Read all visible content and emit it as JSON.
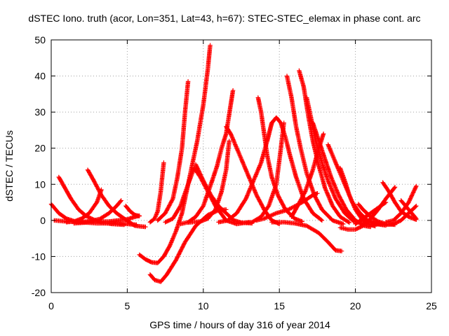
{
  "chart_data": {
    "type": "scatter",
    "title": "dSTEC Iono. truth (acor, Lon=351, Lat=43, h=67): STEC-STEC_elemax in phase cont. arc",
    "xlabel": "GPS time / hours of day 316 of year 2014",
    "ylabel": "dSTEC  / TECUs",
    "xlim": [
      0,
      25
    ],
    "ylim": [
      -20,
      50
    ],
    "x_ticks": [
      0,
      5,
      10,
      15,
      20,
      25
    ],
    "y_ticks": [
      -20,
      -10,
      0,
      10,
      20,
      30,
      40,
      50
    ],
    "grid": true,
    "marker": "+",
    "color": "#ff0000",
    "series": [
      {
        "points": [
          [
            0,
            4.5
          ],
          [
            0.5,
            2
          ],
          [
            1,
            0.5
          ],
          [
            1.5,
            -0.2
          ],
          [
            2,
            -0.5
          ],
          [
            3,
            -0.8
          ],
          [
            4,
            -0.8
          ],
          [
            5,
            -1
          ],
          [
            5.6,
            -1.2
          ]
        ]
      },
      {
        "points": [
          [
            0.2,
            0
          ],
          [
            1,
            -0.3
          ],
          [
            1.8,
            -0.5
          ],
          [
            2.6,
            -0.2
          ],
          [
            3.2,
            0.4
          ],
          [
            3.8,
            2
          ],
          [
            4.3,
            4
          ],
          [
            4.6,
            5.5
          ]
        ]
      },
      {
        "points": [
          [
            0.5,
            12
          ],
          [
            0.9,
            9
          ],
          [
            1.3,
            6
          ],
          [
            1.8,
            3
          ],
          [
            2.3,
            1.2
          ],
          [
            2.8,
            0.2
          ],
          [
            3.3,
            -0.5
          ],
          [
            4,
            -1
          ],
          [
            4.8,
            -1.2
          ]
        ]
      },
      {
        "points": [
          [
            1,
            -0.5
          ],
          [
            1.5,
            -0.3
          ],
          [
            2,
            0.5
          ],
          [
            2.5,
            2
          ],
          [
            3,
            5
          ],
          [
            3.3,
            8.5
          ]
        ]
      },
      {
        "points": [
          [
            2.4,
            14
          ],
          [
            2.8,
            11
          ],
          [
            3.3,
            7
          ],
          [
            3.8,
            4
          ],
          [
            4.3,
            2
          ],
          [
            4.8,
            0.5
          ],
          [
            5.5,
            -1.5
          ],
          [
            6.2,
            -1.8
          ]
        ]
      },
      {
        "points": [
          [
            1.5,
            -0.8
          ],
          [
            2.2,
            -0.6
          ],
          [
            3,
            -0.3
          ],
          [
            3.8,
            -0.3
          ],
          [
            4.4,
            0
          ],
          [
            5,
            0.3
          ],
          [
            5.5,
            1
          ],
          [
            5.8,
            1.3
          ]
        ]
      },
      {
        "points": [
          [
            4.9,
            4
          ],
          [
            5.2,
            2.5
          ],
          [
            5.5,
            1.5
          ],
          [
            5.8,
            1.2
          ]
        ]
      },
      {
        "points": [
          [
            5.8,
            -9.5
          ],
          [
            6.2,
            -10.8
          ],
          [
            6.6,
            -11.6
          ],
          [
            7,
            -11.8
          ],
          [
            7.4,
            -10
          ],
          [
            7.8,
            -7
          ],
          [
            8.2,
            -3
          ],
          [
            8.6,
            2
          ],
          [
            8.9,
            8
          ],
          [
            9.2,
            14
          ],
          [
            9.6,
            22
          ],
          [
            10,
            32
          ],
          [
            10.3,
            42
          ],
          [
            10.45,
            48.5
          ]
        ]
      },
      {
        "points": [
          [
            6.5,
            -15
          ],
          [
            6.8,
            -16.5
          ],
          [
            7.2,
            -17
          ],
          [
            7.6,
            -15
          ],
          [
            8.2,
            -11
          ],
          [
            8.8,
            -6
          ],
          [
            9.5,
            -1.5
          ],
          [
            10.3,
            1.5
          ],
          [
            11,
            2.8
          ],
          [
            11.5,
            3
          ]
        ]
      },
      {
        "points": [
          [
            6.5,
            -0.5
          ],
          [
            6.8,
            0.5
          ],
          [
            7,
            2.5
          ],
          [
            7.2,
            8
          ],
          [
            7.4,
            16
          ]
        ]
      },
      {
        "points": [
          [
            7,
            0
          ],
          [
            7.5,
            2
          ],
          [
            8,
            6
          ],
          [
            8.3,
            12
          ],
          [
            8.6,
            20
          ],
          [
            8.8,
            30
          ],
          [
            9.0,
            38.5
          ]
        ]
      },
      {
        "points": [
          [
            7.5,
            -0.5
          ],
          [
            8,
            0.5
          ],
          [
            8.5,
            4
          ],
          [
            9,
            10
          ],
          [
            9.4,
            14.5
          ],
          [
            9.8,
            12
          ],
          [
            10.3,
            8
          ],
          [
            10.8,
            4
          ],
          [
            11.5,
            0
          ],
          [
            12.2,
            -1
          ],
          [
            13,
            -0.5
          ]
        ]
      },
      {
        "points": [
          [
            8.5,
            -1
          ],
          [
            9,
            -0.5
          ],
          [
            9.5,
            1
          ],
          [
            10,
            4
          ],
          [
            10.5,
            10
          ],
          [
            10.9,
            15
          ],
          [
            11.2,
            20
          ],
          [
            11.5,
            24
          ],
          [
            11.8,
            32
          ],
          [
            11.95,
            36
          ]
        ]
      },
      {
        "points": [
          [
            9,
            -0.6
          ],
          [
            9.8,
            -0.3
          ],
          [
            10.3,
            0.5
          ],
          [
            10.8,
            3
          ],
          [
            11.2,
            8
          ],
          [
            11.5,
            14
          ],
          [
            11.7,
            22
          ]
        ]
      },
      {
        "points": [
          [
            9.5,
            15.5
          ],
          [
            10,
            11
          ],
          [
            10.5,
            7
          ],
          [
            11,
            4
          ],
          [
            11.5,
            2
          ],
          [
            12,
            0
          ],
          [
            12.5,
            -0.6
          ],
          [
            13.2,
            -0.8
          ]
        ]
      },
      {
        "points": [
          [
            11.5,
            26
          ],
          [
            11.8,
            24
          ],
          [
            12.1,
            21
          ],
          [
            12.5,
            17
          ],
          [
            13,
            12
          ],
          [
            13.5,
            7
          ],
          [
            14,
            3
          ],
          [
            14.5,
            0
          ],
          [
            15,
            -1
          ]
        ]
      },
      {
        "points": [
          [
            11,
            -0.5
          ],
          [
            11.6,
            0
          ],
          [
            12.2,
            2
          ],
          [
            12.8,
            6
          ],
          [
            13.3,
            11
          ],
          [
            13.8,
            16
          ],
          [
            14.2,
            22
          ],
          [
            14.5,
            27
          ]
        ]
      },
      {
        "points": [
          [
            12.5,
            -0.7
          ],
          [
            13.2,
            -0.5
          ],
          [
            13.8,
            1
          ],
          [
            14.3,
            4
          ],
          [
            14.8,
            10
          ],
          [
            15.1,
            20
          ],
          [
            15.3,
            27
          ]
        ]
      },
      {
        "points": [
          [
            13.6,
            34
          ],
          [
            13.8,
            30
          ],
          [
            14,
            24
          ],
          [
            14.2,
            18
          ],
          [
            14.5,
            12
          ],
          [
            14.9,
            7
          ],
          [
            15.4,
            3
          ],
          [
            16,
            0.5
          ],
          [
            16.5,
            -0.3
          ]
        ]
      },
      {
        "points": [
          [
            14.2,
            22
          ],
          [
            14.5,
            27
          ],
          [
            14.8,
            28.5
          ],
          [
            15.1,
            27
          ],
          [
            15.4,
            23
          ],
          [
            15.7,
            18
          ],
          [
            16.1,
            12
          ],
          [
            16.6,
            6
          ],
          [
            17.2,
            2
          ],
          [
            17.8,
            0
          ]
        ]
      },
      {
        "points": [
          [
            13.5,
            0
          ],
          [
            14,
            0.5
          ],
          [
            14.8,
            2
          ],
          [
            15.6,
            3
          ],
          [
            16.5,
            5
          ],
          [
            17.2,
            7
          ],
          [
            17.5,
            7.5
          ]
        ]
      },
      {
        "points": [
          [
            15.5,
            40
          ],
          [
            15.8,
            34
          ],
          [
            16.1,
            26
          ],
          [
            16.4,
            20
          ],
          [
            16.8,
            13
          ],
          [
            17.3,
            7
          ],
          [
            17.8,
            3
          ],
          [
            18.5,
            0
          ],
          [
            19.2,
            -1
          ]
        ]
      },
      {
        "points": [
          [
            16.3,
            41.5
          ],
          [
            16.6,
            37
          ],
          [
            16.9,
            29
          ],
          [
            17.2,
            22
          ],
          [
            17.6,
            15
          ],
          [
            18,
            9
          ],
          [
            18.5,
            4
          ],
          [
            19,
            1
          ],
          [
            19.6,
            -0.6
          ]
        ]
      },
      {
        "points": [
          [
            16.8,
            34
          ],
          [
            17.1,
            28
          ],
          [
            17.4,
            22
          ],
          [
            17.8,
            16
          ],
          [
            18.2,
            11
          ],
          [
            18.7,
            6
          ],
          [
            19.3,
            2
          ],
          [
            19.9,
            -0.3
          ],
          [
            20.5,
            -0.8
          ]
        ]
      },
      {
        "points": [
          [
            17.2,
            27
          ],
          [
            17.6,
            22
          ],
          [
            18,
            17
          ],
          [
            18.4,
            12
          ],
          [
            18.9,
            7
          ],
          [
            19.4,
            3
          ],
          [
            20,
            0
          ],
          [
            20.6,
            -1.5
          ],
          [
            21,
            -1.8
          ]
        ]
      },
      {
        "points": [
          [
            18.2,
            21
          ],
          [
            18.6,
            17
          ],
          [
            19,
            13
          ],
          [
            19.4,
            9
          ],
          [
            19.8,
            5
          ],
          [
            20.3,
            2
          ],
          [
            20.8,
            0
          ],
          [
            21.4,
            -1
          ],
          [
            22,
            -1.4
          ]
        ]
      },
      {
        "points": [
          [
            15.8,
            1
          ],
          [
            16.2,
            4
          ],
          [
            16.7,
            8
          ],
          [
            17.2,
            14
          ],
          [
            17.6,
            20
          ],
          [
            17.9,
            24
          ]
        ]
      },
      {
        "points": [
          [
            14.5,
            -0.5
          ],
          [
            15.3,
            -0.5
          ],
          [
            16,
            -0.8
          ],
          [
            16.8,
            -1.5
          ],
          [
            17.6,
            -3.5
          ],
          [
            18.2,
            -6
          ],
          [
            18.7,
            -8.3
          ],
          [
            19.1,
            -8.5
          ]
        ]
      },
      {
        "points": [
          [
            19,
            14.5
          ],
          [
            19.3,
            11
          ],
          [
            19.6,
            7
          ],
          [
            20,
            3
          ],
          [
            20.4,
            0.5
          ],
          [
            20.8,
            -1
          ],
          [
            21.3,
            -1.6
          ]
        ]
      },
      {
        "points": [
          [
            19,
            -2
          ],
          [
            19.5,
            -2.5
          ],
          [
            20,
            -2.5
          ],
          [
            20.5,
            -1.5
          ],
          [
            21,
            0.5
          ],
          [
            21.5,
            3
          ],
          [
            22,
            6
          ],
          [
            22.6,
            9.2
          ]
        ]
      },
      {
        "points": [
          [
            20,
            -1
          ],
          [
            20.5,
            0.5
          ],
          [
            21,
            2
          ],
          [
            21.5,
            3.5
          ],
          [
            22,
            5
          ]
        ]
      },
      {
        "points": [
          [
            21,
            -0.5
          ],
          [
            21.5,
            -1
          ],
          [
            22,
            -1.2
          ],
          [
            22.5,
            -1
          ],
          [
            23,
            0
          ],
          [
            23.5,
            2
          ],
          [
            24,
            4
          ]
        ]
      },
      {
        "points": [
          [
            20.2,
            4.5
          ],
          [
            20.5,
            3
          ],
          [
            21,
            1
          ],
          [
            21.5,
            -0.3
          ],
          [
            22,
            -1
          ],
          [
            22.6,
            -1.2
          ]
        ]
      },
      {
        "points": [
          [
            21.8,
            10.5
          ],
          [
            22.2,
            8
          ],
          [
            22.6,
            5
          ],
          [
            23,
            2.5
          ],
          [
            23.5,
            1
          ],
          [
            24,
            0.2
          ]
        ]
      },
      {
        "points": [
          [
            22,
            -0.5
          ],
          [
            22.5,
            0
          ],
          [
            23,
            2
          ],
          [
            23.5,
            5
          ],
          [
            24,
            9.5
          ]
        ]
      },
      {
        "points": [
          [
            23,
            5.5
          ],
          [
            23.5,
            3
          ],
          [
            24,
            0.5
          ]
        ]
      }
    ]
  }
}
